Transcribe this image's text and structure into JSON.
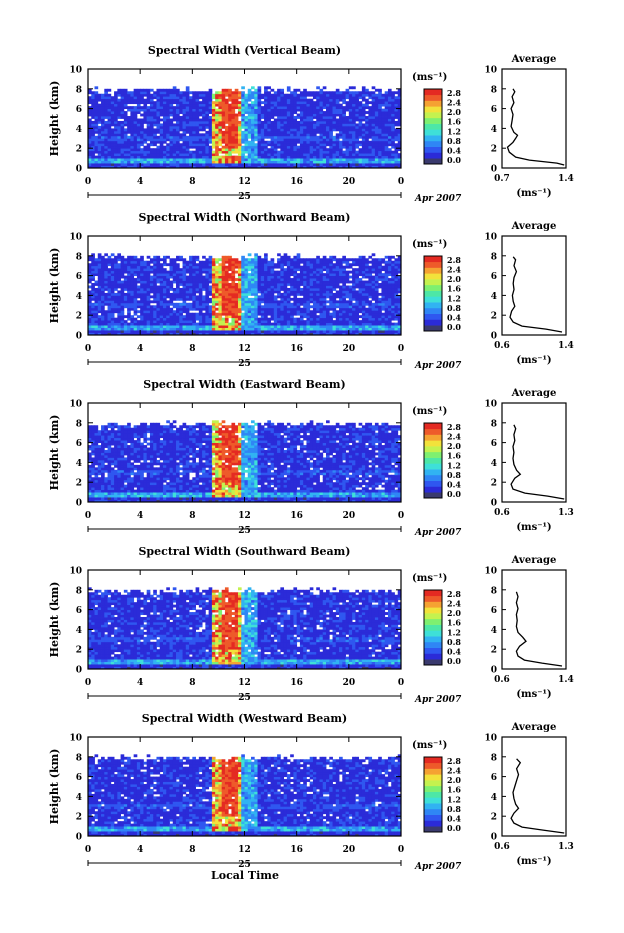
{
  "colors": {
    "background": "#ffffff",
    "colormap": [
      "#3a3a6e",
      "#2b2bd8",
      "#2f57f0",
      "#2f86f5",
      "#31b3f2",
      "#3ee0d8",
      "#4de7a6",
      "#7ef070",
      "#c4f24f",
      "#f2e23b",
      "#f5a232",
      "#ee5a2a",
      "#e42a22"
    ]
  },
  "footer": {
    "xlabel": "Local Time"
  },
  "chart_data": [
    {
      "type": "heatmap",
      "title": "Spectral Width (Vertical Beam)",
      "ylabel": "Height (km)",
      "ylim": [
        0,
        10
      ],
      "yticks": [
        "0",
        "2",
        "4",
        "6",
        "8",
        "10"
      ],
      "xlim": [
        0,
        24
      ],
      "xticks": [
        "0",
        "4",
        "8",
        "12",
        "16",
        "20",
        "0"
      ],
      "day_label": "25",
      "date_label": "Apr 2007",
      "colorbar": {
        "unit": "(ms⁻¹)",
        "ticks": [
          "2.8",
          "2.4",
          "2.0",
          "1.6",
          "1.2",
          "0.8",
          "0.4",
          "0.0"
        ],
        "range": [
          0,
          2.8
        ]
      },
      "average": {
        "title": "Average",
        "xlabel": "(ms⁻¹)",
        "xlim": [
          0.7,
          1.4
        ],
        "xticks": [
          "0.7",
          "1.4"
        ],
        "profile": [
          [
            1.38,
            0.3
          ],
          [
            1.3,
            0.5
          ],
          [
            1.0,
            0.8
          ],
          [
            0.85,
            1.1
          ],
          [
            0.78,
            1.6
          ],
          [
            0.76,
            2.1
          ],
          [
            0.82,
            2.6
          ],
          [
            0.85,
            3.0
          ],
          [
            0.87,
            3.3
          ],
          [
            0.83,
            3.6
          ],
          [
            0.8,
            4.2
          ],
          [
            0.81,
            4.8
          ],
          [
            0.82,
            5.4
          ],
          [
            0.8,
            6.0
          ],
          [
            0.83,
            6.6
          ],
          [
            0.81,
            7.2
          ],
          [
            0.84,
            7.7
          ],
          [
            0.82,
            8.0
          ]
        ]
      }
    },
    {
      "type": "heatmap",
      "title": "Spectral Width (Northward Beam)",
      "ylabel": "Height (km)",
      "ylim": [
        0,
        10
      ],
      "yticks": [
        "0",
        "2",
        "4",
        "6",
        "8",
        "10"
      ],
      "xlim": [
        0,
        24
      ],
      "xticks": [
        "0",
        "4",
        "8",
        "12",
        "16",
        "20",
        "0"
      ],
      "day_label": "25",
      "date_label": "Apr 2007",
      "colorbar": {
        "unit": "(ms⁻¹)",
        "ticks": [
          "2.8",
          "2.4",
          "2.0",
          "1.6",
          "1.2",
          "0.8",
          "0.4",
          "0.0"
        ],
        "range": [
          0,
          2.8
        ]
      },
      "average": {
        "title": "Average",
        "xlabel": "(ms⁻¹)",
        "xlim": [
          0.6,
          1.4
        ],
        "xticks": [
          "0.6",
          "1.4"
        ],
        "profile": [
          [
            1.35,
            0.3
          ],
          [
            1.15,
            0.6
          ],
          [
            0.85,
            0.9
          ],
          [
            0.74,
            1.3
          ],
          [
            0.7,
            1.8
          ],
          [
            0.72,
            2.4
          ],
          [
            0.76,
            2.9
          ],
          [
            0.74,
            3.4
          ],
          [
            0.73,
            4.0
          ],
          [
            0.75,
            4.6
          ],
          [
            0.74,
            5.2
          ],
          [
            0.75,
            5.8
          ],
          [
            0.78,
            6.4
          ],
          [
            0.75,
            7.0
          ],
          [
            0.77,
            7.6
          ],
          [
            0.74,
            7.9
          ]
        ]
      }
    },
    {
      "type": "heatmap",
      "title": "Spectral Width (Eastward Beam)",
      "ylabel": "Height (km)",
      "ylim": [
        0,
        10
      ],
      "yticks": [
        "0",
        "2",
        "4",
        "6",
        "8",
        "10"
      ],
      "xlim": [
        0,
        24
      ],
      "xticks": [
        "0",
        "4",
        "8",
        "12",
        "16",
        "20",
        "0"
      ],
      "day_label": "25",
      "date_label": "Apr 2007",
      "colorbar": {
        "unit": "(ms⁻¹)",
        "ticks": [
          "2.8",
          "2.4",
          "2.0",
          "1.6",
          "1.2",
          "0.8",
          "0.4",
          "0.0"
        ],
        "range": [
          0,
          2.8
        ]
      },
      "average": {
        "title": "Average",
        "xlabel": "(ms⁻¹)",
        "xlim": [
          0.6,
          1.3
        ],
        "xticks": [
          "0.6",
          "1.3"
        ],
        "profile": [
          [
            1.28,
            0.3
          ],
          [
            1.1,
            0.6
          ],
          [
            0.85,
            0.9
          ],
          [
            0.72,
            1.3
          ],
          [
            0.7,
            1.8
          ],
          [
            0.74,
            2.4
          ],
          [
            0.8,
            2.8
          ],
          [
            0.76,
            3.2
          ],
          [
            0.73,
            3.8
          ],
          [
            0.72,
            4.4
          ],
          [
            0.73,
            5.0
          ],
          [
            0.72,
            5.6
          ],
          [
            0.74,
            6.2
          ],
          [
            0.73,
            6.8
          ],
          [
            0.75,
            7.4
          ],
          [
            0.73,
            7.8
          ]
        ]
      }
    },
    {
      "type": "heatmap",
      "title": "Spectral Width (Southward Beam)",
      "ylabel": "Height (km)",
      "ylim": [
        0,
        10
      ],
      "yticks": [
        "0",
        "2",
        "4",
        "6",
        "8",
        "10"
      ],
      "xlim": [
        0,
        24
      ],
      "xticks": [
        "0",
        "4",
        "8",
        "12",
        "16",
        "20",
        "0"
      ],
      "day_label": "25",
      "date_label": "Apr 2007",
      "colorbar": {
        "unit": "(ms⁻¹)",
        "ticks": [
          "2.8",
          "2.4",
          "2.0",
          "1.6",
          "1.2",
          "0.8",
          "0.4",
          "0.0"
        ],
        "range": [
          0,
          2.8
        ]
      },
      "average": {
        "title": "Average",
        "xlabel": "(ms⁻¹)",
        "xlim": [
          0.6,
          1.4
        ],
        "xticks": [
          "0.6",
          "1.4"
        ],
        "profile": [
          [
            1.35,
            0.3
          ],
          [
            1.1,
            0.6
          ],
          [
            0.88,
            0.9
          ],
          [
            0.8,
            1.3
          ],
          [
            0.78,
            1.8
          ],
          [
            0.82,
            2.3
          ],
          [
            0.9,
            2.8
          ],
          [
            0.86,
            3.2
          ],
          [
            0.8,
            3.7
          ],
          [
            0.78,
            4.3
          ],
          [
            0.79,
            4.9
          ],
          [
            0.78,
            5.5
          ],
          [
            0.8,
            6.1
          ],
          [
            0.78,
            6.7
          ],
          [
            0.8,
            7.3
          ],
          [
            0.78,
            7.8
          ]
        ]
      }
    },
    {
      "type": "heatmap",
      "title": "Spectral Width (Westward Beam)",
      "ylabel": "Height (km)",
      "ylim": [
        0,
        10
      ],
      "yticks": [
        "0",
        "2",
        "4",
        "6",
        "8",
        "10"
      ],
      "xlim": [
        0,
        24
      ],
      "xticks": [
        "0",
        "4",
        "8",
        "12",
        "16",
        "20",
        "0"
      ],
      "day_label": "25",
      "date_label": "Apr 2007",
      "colorbar": {
        "unit": "(ms⁻¹)",
        "ticks": [
          "2.8",
          "2.4",
          "2.0",
          "1.6",
          "1.2",
          "0.8",
          "0.4",
          "0.0"
        ],
        "range": [
          0,
          2.8
        ]
      },
      "average": {
        "title": "Average",
        "xlabel": "(ms⁻¹)",
        "xlim": [
          0.6,
          1.3
        ],
        "xticks": [
          "0.6",
          "1.3"
        ],
        "profile": [
          [
            1.28,
            0.3
          ],
          [
            1.05,
            0.6
          ],
          [
            0.82,
            0.9
          ],
          [
            0.73,
            1.3
          ],
          [
            0.7,
            1.8
          ],
          [
            0.73,
            2.3
          ],
          [
            0.78,
            2.8
          ],
          [
            0.75,
            3.2
          ],
          [
            0.73,
            3.8
          ],
          [
            0.72,
            4.4
          ],
          [
            0.74,
            5.0
          ],
          [
            0.76,
            5.6
          ],
          [
            0.78,
            6.2
          ],
          [
            0.76,
            6.8
          ],
          [
            0.8,
            7.4
          ],
          [
            0.76,
            7.8
          ]
        ]
      }
    }
  ]
}
